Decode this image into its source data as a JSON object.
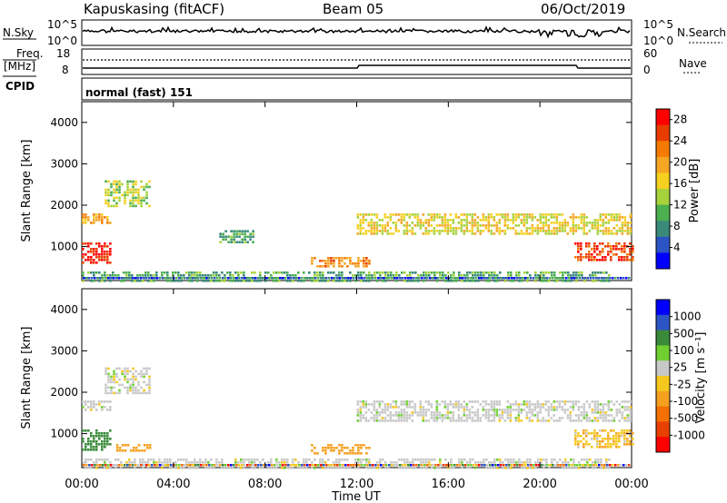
{
  "header": {
    "station": "Kapuskasing (fitACF)",
    "beam": "Beam 05",
    "date": "06/Oct/2019"
  },
  "noise_panel": {
    "left_label": "N.Sky",
    "right_label": "N.Search",
    "left_ticks": [
      "10^5",
      "10^0"
    ],
    "right_ticks": [
      "10^5",
      "10^0"
    ]
  },
  "freq_panel": {
    "left_label_top": "Freq.",
    "left_label_bottom": "[MHz]",
    "left_ticks": [
      "18",
      "8"
    ],
    "right_label": "Nave",
    "right_ticks": [
      "60",
      "0"
    ]
  },
  "cpid_panel": {
    "label": "CPID",
    "value": "normal (fast) 151"
  },
  "x_axis": {
    "label": "Time UT",
    "ticks": [
      "00:00",
      "04:00",
      "08:00",
      "12:00",
      "16:00",
      "20:00",
      "00:00"
    ]
  },
  "colors": {
    "power_scale": [
      "#0000ff",
      "#2c54c4",
      "#3a8a7a",
      "#4caf50",
      "#a6d23c",
      "#f5d020",
      "#f5a623",
      "#f57b00",
      "#e83c00",
      "#ff0000"
    ],
    "velocity_scale": [
      "#0000ff",
      "#2c54c4",
      "#3a8a3a",
      "#6fcf30",
      "#c8c8c8",
      "#f5c81e",
      "#f5a020",
      "#f57000",
      "#e84000",
      "#ff0000"
    ]
  },
  "chart_data": [
    {
      "type": "heatmap",
      "title": "",
      "xlabel": "",
      "ylabel": "Slant Range [km]",
      "xlim_hours": [
        0,
        24
      ],
      "ylim": [
        180,
        4500
      ],
      "yticks": [
        "1000",
        "2000",
        "3000",
        "4000"
      ],
      "colorbar": {
        "label": "Power [dB]",
        "ticks": [
          "4",
          "8",
          "12",
          "16",
          "20",
          "24",
          "28"
        ],
        "range": [
          0,
          30
        ]
      },
      "echo_regions": [
        {
          "t0": 0.0,
          "t1": 1.3,
          "r0": 1550,
          "r1": 1800,
          "value": 20
        },
        {
          "t0": 0.0,
          "t1": 1.2,
          "r0": 600,
          "r1": 1100,
          "value": 28
        },
        {
          "t0": 1.0,
          "t1": 3.0,
          "r0": 2000,
          "r1": 2600,
          "value": 14
        },
        {
          "t0": 0.0,
          "t1": 23.0,
          "r0": 200,
          "r1": 400,
          "value": 10
        },
        {
          "t0": 10.0,
          "t1": 12.5,
          "r0": 500,
          "r1": 750,
          "value": 22
        },
        {
          "t0": 12.0,
          "t1": 24.0,
          "r0": 1300,
          "r1": 1800,
          "value": 16
        },
        {
          "t0": 21.5,
          "t1": 24.0,
          "r0": 700,
          "r1": 1100,
          "value": 26
        },
        {
          "t0": 6.0,
          "t1": 7.5,
          "r0": 1100,
          "r1": 1400,
          "value": 10
        }
      ]
    },
    {
      "type": "heatmap",
      "title": "",
      "xlabel": "Time UT",
      "ylabel": "Slant Range [km]",
      "xlim_hours": [
        0,
        24
      ],
      "ylim": [
        180,
        4500
      ],
      "yticks": [
        "1000",
        "2000",
        "3000",
        "4000"
      ],
      "colorbar": {
        "label": "Velocity [m s⁻¹]",
        "ticks": [
          "1000",
          "500",
          "100",
          "25",
          "-25",
          "-100",
          "-500",
          "-1000"
        ],
        "range": [
          -1000,
          1000
        ]
      },
      "echo_regions": [
        {
          "t0": 0.0,
          "t1": 1.3,
          "r0": 1550,
          "r1": 1800,
          "value": 0
        },
        {
          "t0": 0.0,
          "t1": 1.2,
          "r0": 600,
          "r1": 1100,
          "value": 100
        },
        {
          "t0": 1.0,
          "t1": 3.0,
          "r0": 2000,
          "r1": 2600,
          "value": 0
        },
        {
          "t0": 0.0,
          "t1": 23.0,
          "r0": 200,
          "r1": 400,
          "value": 0
        },
        {
          "t0": 10.0,
          "t1": 12.5,
          "r0": 500,
          "r1": 750,
          "value": -100
        },
        {
          "t0": 12.0,
          "t1": 24.0,
          "r0": 1300,
          "r1": 1800,
          "value": 0
        },
        {
          "t0": 21.5,
          "t1": 24.0,
          "r0": 700,
          "r1": 1100,
          "value": -50
        },
        {
          "t0": 1.5,
          "t1": 3.0,
          "r0": 600,
          "r1": 750,
          "value": -150
        }
      ]
    }
  ]
}
